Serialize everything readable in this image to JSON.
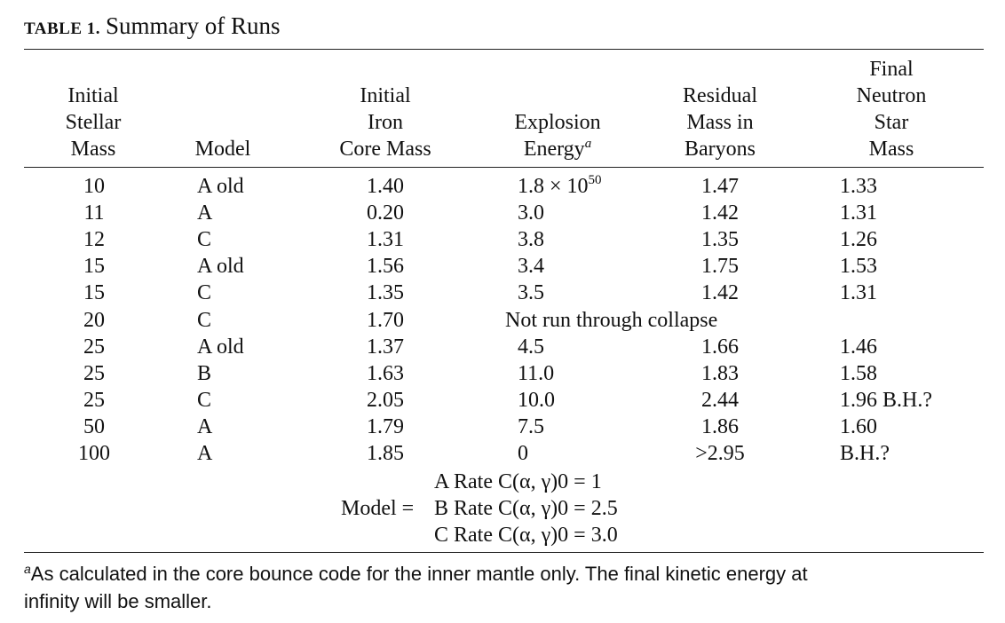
{
  "caption": {
    "label": "TABLE 1.",
    "title": "Summary of Runs"
  },
  "headers": [
    {
      "lines": [
        "Initial",
        "Stellar",
        "Mass"
      ]
    },
    {
      "lines": [
        "Model"
      ]
    },
    {
      "lines": [
        "Initial",
        "Iron",
        "Core Mass"
      ]
    },
    {
      "lines": [
        "Explosion",
        "Energy"
      ],
      "footnote_mark": "a"
    },
    {
      "lines": [
        "Residual",
        "Mass in",
        "Baryons"
      ]
    },
    {
      "lines": [
        "Final",
        "Neutron",
        "Star",
        "Mass"
      ]
    }
  ],
  "rows": [
    {
      "mass": "10",
      "model": "A old",
      "core": "1.40",
      "energy": "1.8 × 10",
      "energy_exp": "50",
      "residual": "1.47",
      "final": "1.33"
    },
    {
      "mass": "11",
      "model": "A",
      "core": "0.20",
      "energy": "3.0",
      "residual": "1.42",
      "final": "1.31"
    },
    {
      "mass": "12",
      "model": "C",
      "core": "1.31",
      "energy": "3.8",
      "residual": "1.35",
      "final": "1.26"
    },
    {
      "mass": "15",
      "model": "A old",
      "core": "1.56",
      "energy": "3.4",
      "residual": "1.75",
      "final": "1.53"
    },
    {
      "mass": "15",
      "model": "C",
      "core": "1.35",
      "energy": "3.5",
      "residual": "1.42",
      "final": "1.31"
    },
    {
      "mass": "20",
      "model": "C",
      "core": "1.70",
      "span_note": "Not run through collapse"
    },
    {
      "mass": "25",
      "model": "A old",
      "core": "1.37",
      "energy": "4.5",
      "residual": "1.66",
      "final": "1.46"
    },
    {
      "mass": "25",
      "model": "B",
      "core": "1.63",
      "energy": "11.0",
      "residual": "1.83",
      "final": "1.58"
    },
    {
      "mass": "25",
      "model": "C",
      "core": "2.05",
      "energy": "10.0",
      "residual": "2.44",
      "final": "1.96 B.H.?"
    },
    {
      "mass": "50",
      "model": "A",
      "core": "1.79",
      "energy": "7.5",
      "residual": "1.86",
      "final": "1.60"
    },
    {
      "mass": "100",
      "model": "A",
      "core": "1.85",
      "energy": "0",
      "residual": ">2.95",
      "final": "B.H.?"
    }
  ],
  "model_key": {
    "prefix": "Model =",
    "lines": [
      "A Rate C(α, γ)0 = 1",
      "B Rate C(α, γ)0 = 2.5",
      "C Rate C(α, γ)0 = 3.0"
    ]
  },
  "footnote": {
    "mark": "a",
    "line1": "As calculated in the core bounce code for the inner mantle only. The final kinetic energy at",
    "line2": "infinity will be smaller."
  }
}
